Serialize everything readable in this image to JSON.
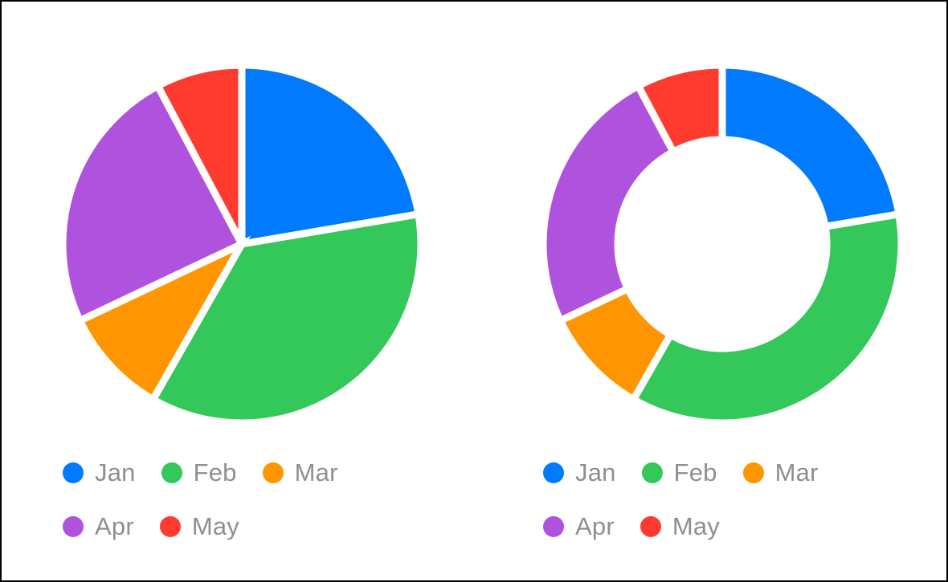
{
  "chart_data": [
    {
      "type": "pie",
      "categories": [
        "Jan",
        "Feb",
        "Mar",
        "Apr",
        "May"
      ],
      "values": [
        23,
        37,
        10,
        25,
        8
      ],
      "colors": [
        "#007aff",
        "#34c759",
        "#ff9500",
        "#af52de",
        "#ff3b30"
      ],
      "legend": "bottom-left"
    },
    {
      "type": "pie",
      "variant": "donut",
      "categories": [
        "Jan",
        "Feb",
        "Mar",
        "Apr",
        "May"
      ],
      "values": [
        23,
        37,
        10,
        25,
        8
      ],
      "colors": [
        "#007aff",
        "#34c759",
        "#ff9500",
        "#af52de",
        "#ff3b30"
      ],
      "legend": "bottom-left"
    }
  ]
}
